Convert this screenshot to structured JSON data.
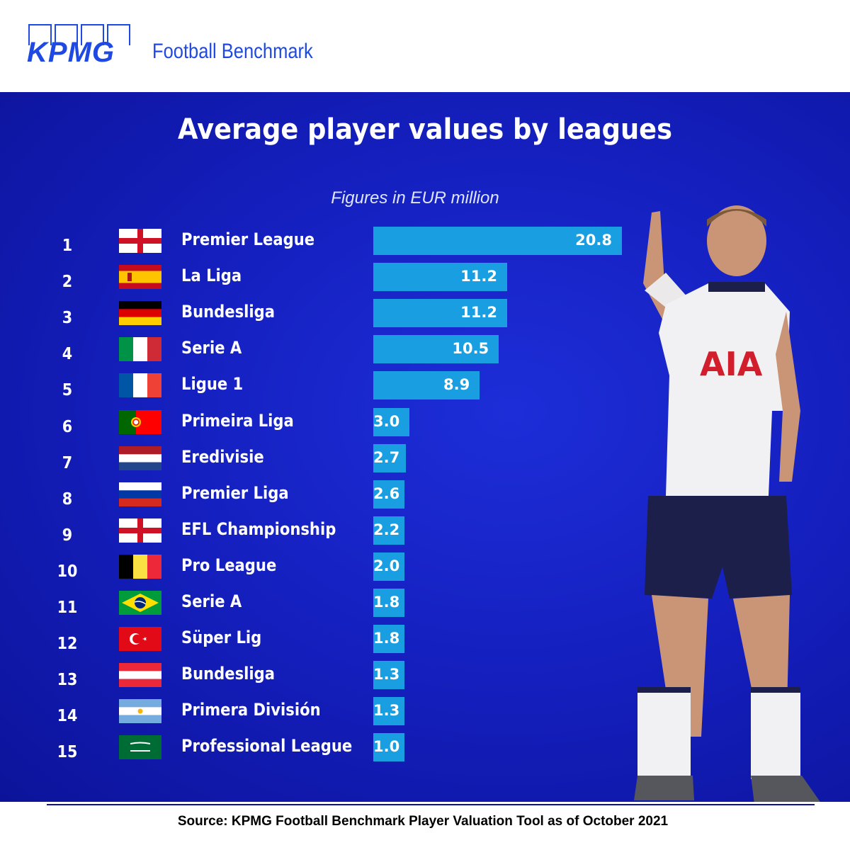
{
  "brand": {
    "logo_text": "KPMG",
    "product": "Football Benchmark"
  },
  "colors": {
    "panel": "#1520c0",
    "bar": "#199ee2",
    "brand_blue": "#1e49e2"
  },
  "chart_data": {
    "type": "bar",
    "orientation": "horizontal",
    "title": "Average player values by leagues",
    "subtitle": "Figures in EUR million",
    "xlabel": "",
    "ylabel": "",
    "grid": false,
    "ranks": [
      "1",
      "2",
      "3",
      "4",
      "5",
      "6",
      "7",
      "8",
      "9",
      "10",
      "11",
      "12",
      "13",
      "14",
      "15"
    ],
    "categories": [
      "Premier League",
      "La Liga",
      "Bundesliga",
      "Serie A",
      "Ligue 1",
      "Primeira Liga",
      "Eredivisie",
      "Premier Liga",
      "EFL Championship",
      "Pro League",
      "Serie A",
      "Süper Lig",
      "Bundesliga",
      "Primera División",
      "Professional League"
    ],
    "countries": [
      "england",
      "spain",
      "germany",
      "italy",
      "france",
      "portugal",
      "netherlands",
      "russia",
      "england",
      "belgium",
      "brazil",
      "turkey",
      "austria",
      "argentina",
      "saudi-arabia"
    ],
    "value_labels": [
      "20.8",
      "11.2",
      "11.2",
      "10.5",
      "8.9",
      "3.0",
      "2.7",
      "2.6",
      "2.2",
      "2.0",
      "1.8",
      "1.8",
      "1.3",
      "1.3",
      "1.0"
    ],
    "values": [
      20.8,
      11.2,
      11.2,
      10.5,
      8.9,
      3.0,
      2.7,
      2.6,
      2.2,
      2.0,
      1.8,
      1.8,
      1.3,
      1.3,
      1.0
    ]
  },
  "footer": {
    "source": "Source: KPMG Football Benchmark Player Valuation Tool as of October 2021"
  }
}
